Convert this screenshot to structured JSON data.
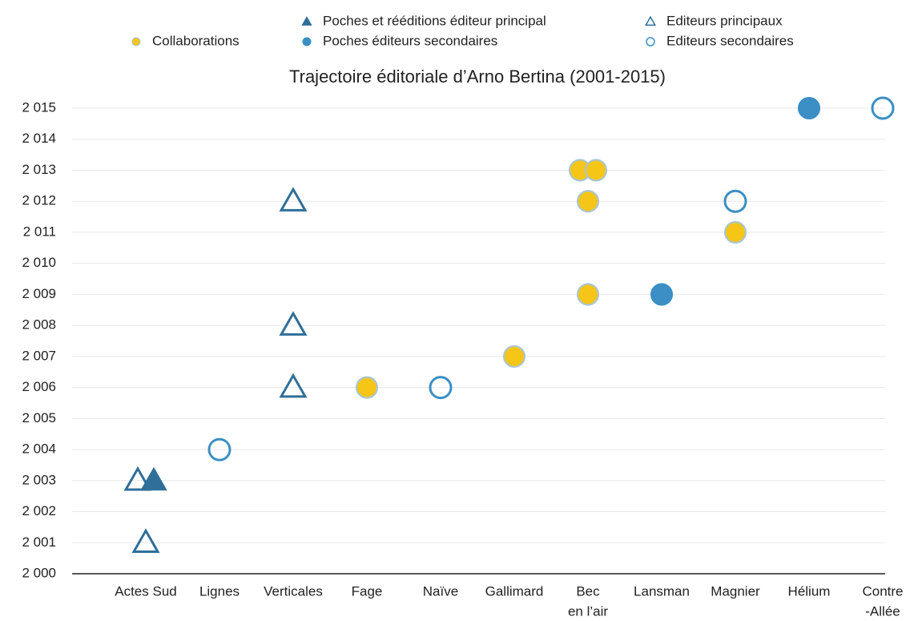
{
  "chart_data": {
    "type": "scatter",
    "title": "Trajectoire éditoriale d’Arno Bertina (2001-2015)",
    "categories": [
      [
        "Actes Sud"
      ],
      [
        "Lignes"
      ],
      [
        "Verticales"
      ],
      [
        "Fage"
      ],
      [
        "Naïve"
      ],
      [
        "Gallimard"
      ],
      [
        "Bec",
        "en l’air"
      ],
      [
        "Lansman"
      ],
      [
        "Magnier"
      ],
      [
        "Hélium"
      ],
      [
        "Contre",
        "-Allée"
      ]
    ],
    "ylim": [
      2000,
      2015
    ],
    "yticks": [
      {
        "value": 2000,
        "label": "2 000"
      },
      {
        "value": 2001,
        "label": "2 001"
      },
      {
        "value": 2002,
        "label": "2 002"
      },
      {
        "value": 2003,
        "label": "2 003"
      },
      {
        "value": 2004,
        "label": "2 004"
      },
      {
        "value": 2005,
        "label": "2 005"
      },
      {
        "value": 2006,
        "label": "2 006"
      },
      {
        "value": 2007,
        "label": "2 007"
      },
      {
        "value": 2008,
        "label": "2 008"
      },
      {
        "value": 2009,
        "label": "2 009"
      },
      {
        "value": 2010,
        "label": "2 010"
      },
      {
        "value": 2011,
        "label": "2 011"
      },
      {
        "value": 2012,
        "label": "2 012"
      },
      {
        "value": 2013,
        "label": "2 013"
      },
      {
        "value": 2014,
        "label": "2 014"
      },
      {
        "value": 2015,
        "label": "2 015"
      }
    ],
    "grid": true,
    "legend": "top",
    "series": [
      {
        "name": "Collaborations",
        "color": "#f5c518",
        "marker": "circle",
        "filled": true,
        "x": [
          "Fage",
          "Gallimard",
          "Bec",
          "Bec",
          "Bec",
          "Bec",
          "Magnier"
        ],
        "values": [
          2006,
          2007,
          2009,
          2012,
          2013,
          2013,
          2011
        ]
      },
      {
        "name": "Poches et rééditions éditeur principal",
        "color": "#2f6f99",
        "marker": "triangle",
        "filled": true,
        "x": [
          "Actes Sud"
        ],
        "values": [
          2003
        ]
      },
      {
        "name": "Poches éditeurs secondaires",
        "color": "#3b8fc4",
        "marker": "circle",
        "filled": true,
        "x": [
          "Lansman",
          "Hélium"
        ],
        "values": [
          2009,
          2015
        ]
      },
      {
        "name": "Editeurs principaux",
        "color": "#2f6f99",
        "marker": "triangle",
        "filled": false,
        "x": [
          "Actes Sud",
          "Actes Sud",
          "Verticales",
          "Verticales",
          "Verticales"
        ],
        "values": [
          2001,
          2003,
          2006,
          2008,
          2012
        ]
      },
      {
        "name": "Editeurs secondaires",
        "color": "#3b8fc4",
        "marker": "circle",
        "filled": false,
        "x": [
          "Lignes",
          "Naïve",
          "Magnier",
          "Contre"
        ],
        "values": [
          2004,
          2006,
          2012,
          2015
        ]
      }
    ]
  }
}
